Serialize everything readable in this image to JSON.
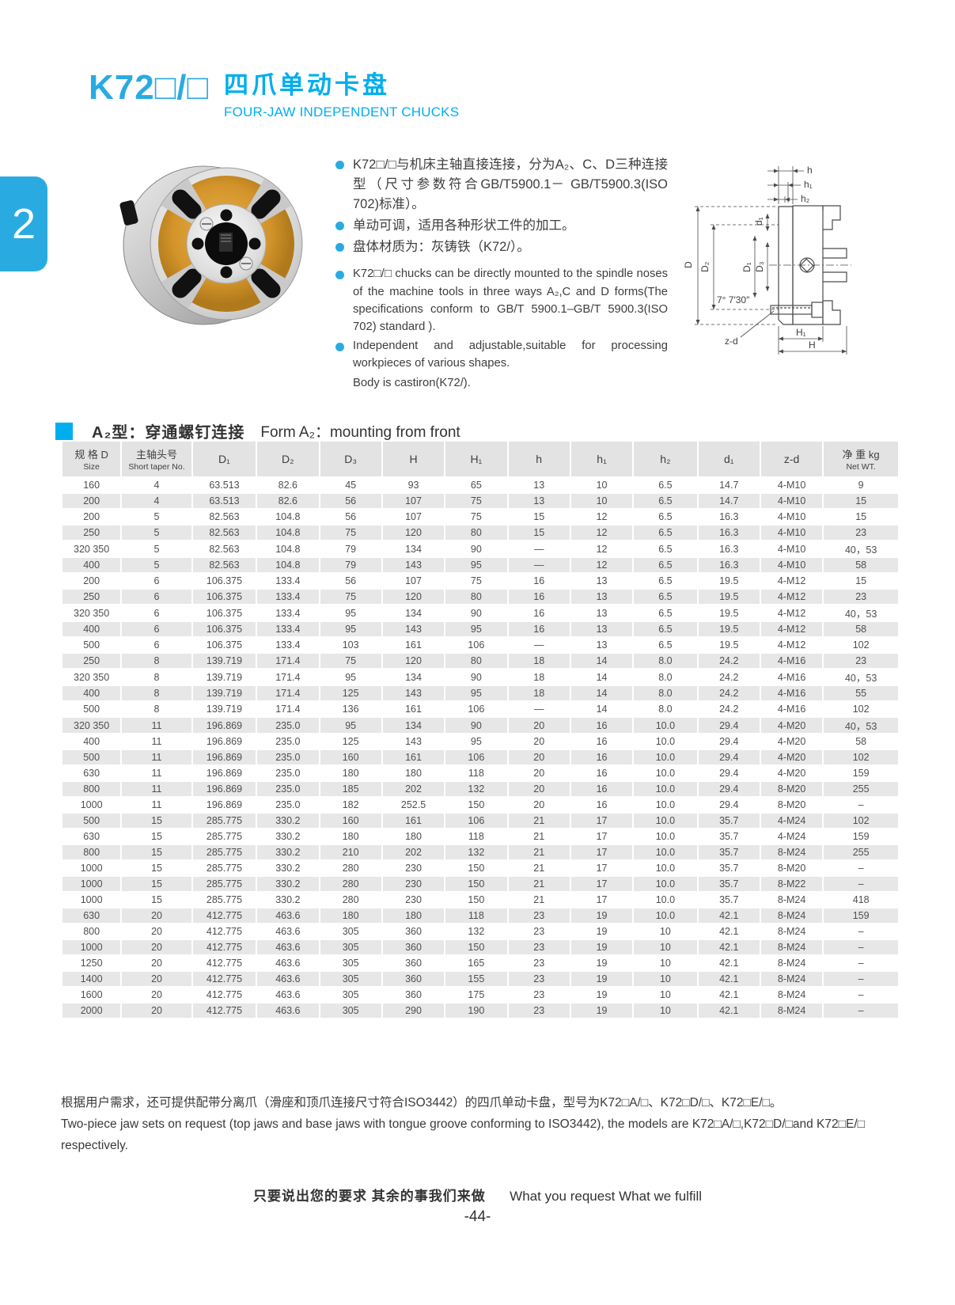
{
  "header": {
    "model": "K72□/□",
    "title_zh": "四爪单动卡盘",
    "title_en": "FOUR-JAW INDEPENDENT CHUCKS"
  },
  "side_tab": {
    "label": "2"
  },
  "colors": {
    "accent_blue": "#29abe2",
    "accent_cyan": "#00aeef",
    "row_stripe": "#e7e7e7",
    "chuck_orange": "#d99a2e"
  },
  "features": {
    "zh": [
      "K72□/□与机床主轴直接连接，分为A₂、C、D三种连接型（尺寸参数符合GB/T5900.1－ GB/T5900.3(ISO 702)标准）。",
      "单动可调，适用各种形状工件的加工。",
      "盘体材质为：灰铸铁（K72/）。"
    ],
    "en": [
      {
        "text": "K72□/□ chucks can be directly mounted to the spindle noses of the machine tools in three ways A₂,C and D forms(The specifications conform to GB/T 5900.1–GB/T 5900.3(ISO 702) standard ).",
        "sub": ""
      },
      {
        "text": "Independent and adjustable,suitable for processing workpieces of various shapes.",
        "sub": "Body is castiron(K72/)."
      }
    ]
  },
  "drawing": {
    "labels": {
      "h": "h",
      "h1": "h₁",
      "h2": "h₂",
      "d1": "d₁",
      "D": "D",
      "D1": "D₁",
      "D2": "D₂",
      "D3": "D₃",
      "angle": "7°  7′30″",
      "zd": "z-d",
      "H1": "H₁",
      "H": "H"
    }
  },
  "section": {
    "title_zh": "A₂型：穿通螺钉连接",
    "title_en": "Form A₂：mounting from front"
  },
  "table": {
    "headers": [
      {
        "zh": "规 格 D",
        "en": "Size"
      },
      {
        "zh": "主轴头号",
        "en": "Short taper No."
      },
      {
        "label": "D₁"
      },
      {
        "label": "D₂"
      },
      {
        "label": "D₃"
      },
      {
        "label": "H"
      },
      {
        "label": "H₁"
      },
      {
        "label": "h"
      },
      {
        "label": "h₁"
      },
      {
        "label": "h₂"
      },
      {
        "label": "d₁"
      },
      {
        "label": "z-d"
      },
      {
        "zh": "净 重 kg",
        "en": "Net WT."
      }
    ],
    "rows": [
      [
        "160",
        "4",
        "63.513",
        "82.6",
        "45",
        "93",
        "65",
        "13",
        "10",
        "6.5",
        "14.7",
        "4-M10",
        "9"
      ],
      [
        "200",
        "4",
        "63.513",
        "82.6",
        "56",
        "107",
        "75",
        "13",
        "10",
        "6.5",
        "14.7",
        "4-M10",
        "15"
      ],
      [
        "200",
        "5",
        "82.563",
        "104.8",
        "56",
        "107",
        "75",
        "15",
        "12",
        "6.5",
        "16.3",
        "4-M10",
        "15"
      ],
      [
        "250",
        "5",
        "82.563",
        "104.8",
        "75",
        "120",
        "80",
        "15",
        "12",
        "6.5",
        "16.3",
        "4-M10",
        "23"
      ],
      [
        "320 350",
        "5",
        "82.563",
        "104.8",
        "79",
        "134",
        "90",
        "—",
        "12",
        "6.5",
        "16.3",
        "4-M10",
        "40，53"
      ],
      [
        "400",
        "5",
        "82.563",
        "104.8",
        "79",
        "143",
        "95",
        "—",
        "12",
        "6.5",
        "16.3",
        "4-M10",
        "58"
      ],
      [
        "200",
        "6",
        "106.375",
        "133.4",
        "56",
        "107",
        "75",
        "16",
        "13",
        "6.5",
        "19.5",
        "4-M12",
        "15"
      ],
      [
        "250",
        "6",
        "106.375",
        "133.4",
        "75",
        "120",
        "80",
        "16",
        "13",
        "6.5",
        "19.5",
        "4-M12",
        "23"
      ],
      [
        "320 350",
        "6",
        "106.375",
        "133.4",
        "95",
        "134",
        "90",
        "16",
        "13",
        "6.5",
        "19.5",
        "4-M12",
        "40，53"
      ],
      [
        "400",
        "6",
        "106.375",
        "133.4",
        "95",
        "143",
        "95",
        "16",
        "13",
        "6.5",
        "19.5",
        "4-M12",
        "58"
      ],
      [
        "500",
        "6",
        "106.375",
        "133.4",
        "103",
        "161",
        "106",
        "—",
        "13",
        "6.5",
        "19.5",
        "4-M12",
        "102"
      ],
      [
        "250",
        "8",
        "139.719",
        "171.4",
        "75",
        "120",
        "80",
        "18",
        "14",
        "8.0",
        "24.2",
        "4-M16",
        "23"
      ],
      [
        "320 350",
        "8",
        "139.719",
        "171.4",
        "95",
        "134",
        "90",
        "18",
        "14",
        "8.0",
        "24.2",
        "4-M16",
        "40，53"
      ],
      [
        "400",
        "8",
        "139.719",
        "171.4",
        "125",
        "143",
        "95",
        "18",
        "14",
        "8.0",
        "24.2",
        "4-M16",
        "55"
      ],
      [
        "500",
        "8",
        "139.719",
        "171.4",
        "136",
        "161",
        "106",
        "—",
        "14",
        "8.0",
        "24.2",
        "4-M16",
        "102"
      ],
      [
        "320 350",
        "11",
        "196.869",
        "235.0",
        "95",
        "134",
        "90",
        "20",
        "16",
        "10.0",
        "29.4",
        "4-M20",
        "40，53"
      ],
      [
        "400",
        "11",
        "196.869",
        "235.0",
        "125",
        "143",
        "95",
        "20",
        "16",
        "10.0",
        "29.4",
        "4-M20",
        "58"
      ],
      [
        "500",
        "11",
        "196.869",
        "235.0",
        "160",
        "161",
        "106",
        "20",
        "16",
        "10.0",
        "29.4",
        "4-M20",
        "102"
      ],
      [
        "630",
        "11",
        "196.869",
        "235.0",
        "180",
        "180",
        "118",
        "20",
        "16",
        "10.0",
        "29.4",
        "4-M20",
        "159"
      ],
      [
        "800",
        "11",
        "196.869",
        "235.0",
        "185",
        "202",
        "132",
        "20",
        "16",
        "10.0",
        "29.4",
        "8-M20",
        "255"
      ],
      [
        "1000",
        "11",
        "196.869",
        "235.0",
        "182",
        "252.5",
        "150",
        "20",
        "16",
        "10.0",
        "29.4",
        "8-M20",
        "–"
      ],
      [
        "500",
        "15",
        "285.775",
        "330.2",
        "160",
        "161",
        "106",
        "21",
        "17",
        "10.0",
        "35.7",
        "4-M24",
        "102"
      ],
      [
        "630",
        "15",
        "285.775",
        "330.2",
        "180",
        "180",
        "118",
        "21",
        "17",
        "10.0",
        "35.7",
        "4-M24",
        "159"
      ],
      [
        "800",
        "15",
        "285.775",
        "330.2",
        "210",
        "202",
        "132",
        "21",
        "17",
        "10.0",
        "35.7",
        "8-M24",
        "255"
      ],
      [
        "1000",
        "15",
        "285.775",
        "330.2",
        "280",
        "230",
        "150",
        "21",
        "17",
        "10.0",
        "35.7",
        "8-M20",
        "–"
      ],
      [
        "1000",
        "15",
        "285.775",
        "330.2",
        "280",
        "230",
        "150",
        "21",
        "17",
        "10.0",
        "35.7",
        "8-M22",
        "–"
      ],
      [
        "1000",
        "15",
        "285.775",
        "330.2",
        "280",
        "230",
        "150",
        "21",
        "17",
        "10.0",
        "35.7",
        "8-M24",
        "418"
      ],
      [
        "630",
        "20",
        "412.775",
        "463.6",
        "180",
        "180",
        "118",
        "23",
        "19",
        "10.0",
        "42.1",
        "8-M24",
        "159"
      ],
      [
        "800",
        "20",
        "412.775",
        "463.6",
        "305",
        "360",
        "132",
        "23",
        "19",
        "10",
        "42.1",
        "8-M24",
        "–"
      ],
      [
        "1000",
        "20",
        "412.775",
        "463.6",
        "305",
        "360",
        "150",
        "23",
        "19",
        "10",
        "42.1",
        "8-M24",
        "–"
      ],
      [
        "1250",
        "20",
        "412.775",
        "463.6",
        "305",
        "360",
        "165",
        "23",
        "19",
        "10",
        "42.1",
        "8-M24",
        "–"
      ],
      [
        "1400",
        "20",
        "412.775",
        "463.6",
        "305",
        "360",
        "155",
        "23",
        "19",
        "10",
        "42.1",
        "8-M24",
        "–"
      ],
      [
        "1600",
        "20",
        "412.775",
        "463.6",
        "305",
        "360",
        "175",
        "23",
        "19",
        "10",
        "42.1",
        "8-M24",
        "–"
      ],
      [
        "2000",
        "20",
        "412.775",
        "463.6",
        "305",
        "290",
        "190",
        "23",
        "19",
        "10",
        "42.1",
        "8-M24",
        "–"
      ]
    ]
  },
  "notes": {
    "zh": "根据用户需求，还可提供配带分离爪（滑座和顶爪连接尺寸符合ISO3442）的四爪单动卡盘，型号为K72□A/□、K72□D/□、K72□E/□。",
    "en": "Two-piece jaw sets on request (top jaws and base jaws with tongue groove conforming to ISO3442), the models are K72□A/□,K72□D/□and K72□E/□",
    "en2": "respectively."
  },
  "footer": {
    "tagline_zh": "只要说出您的要求  其余的事我们来做",
    "tagline_en": "What you request  What we fulfill",
    "page_number": "-44-"
  }
}
